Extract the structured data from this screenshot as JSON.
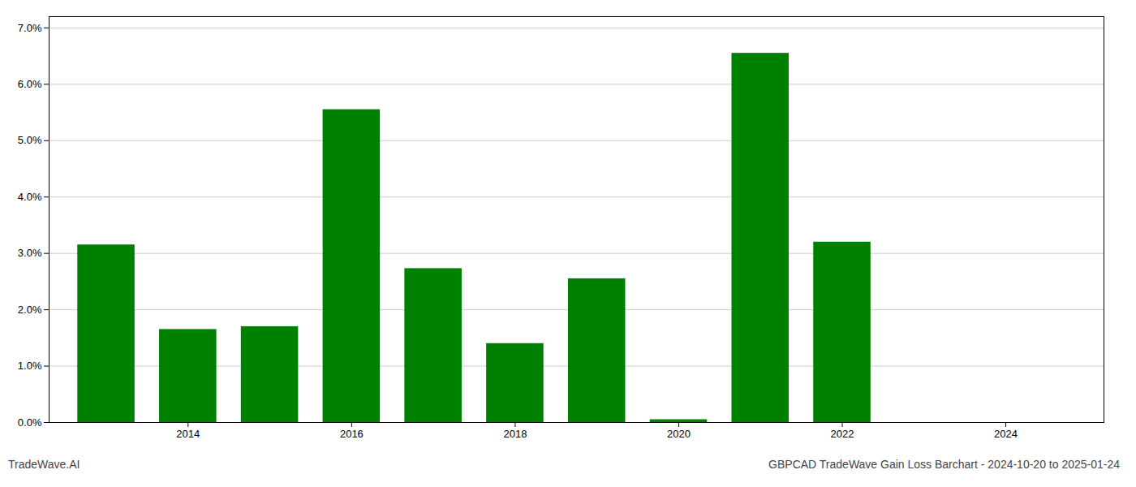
{
  "chart_data": {
    "type": "bar",
    "title": "GBPCAD TradeWave Gain Loss Barchart - 2024-10-20 to 2025-01-24",
    "annotations": [
      "TradeWave.AI"
    ],
    "x": [
      2013,
      2014,
      2015,
      2016,
      2017,
      2018,
      2019,
      2020,
      2021,
      2022,
      2023
    ],
    "values": [
      0.0315,
      0.0165,
      0.017,
      0.0555,
      0.0273,
      0.014,
      0.0255,
      0.0005,
      0.0655,
      0.032,
      0.0
    ],
    "color": "#008000",
    "xlim": [
      2012.3,
      2025.2
    ],
    "xticks": [
      2014,
      2016,
      2018,
      2020,
      2022,
      2024
    ],
    "ylim": [
      0,
      0.072
    ],
    "yticks": [
      {
        "value": 0,
        "label": "0.0%"
      },
      {
        "value": 0.01,
        "label": "1.0%"
      },
      {
        "value": 0.02,
        "label": "2.0%"
      },
      {
        "value": 0.03,
        "label": "3.0%"
      },
      {
        "value": 0.04,
        "label": "4.0%"
      },
      {
        "value": 0.05,
        "label": "5.0%"
      },
      {
        "value": 0.06,
        "label": "6.0%"
      },
      {
        "value": 0.07,
        "label": "7.0%"
      }
    ],
    "grid": true
  }
}
